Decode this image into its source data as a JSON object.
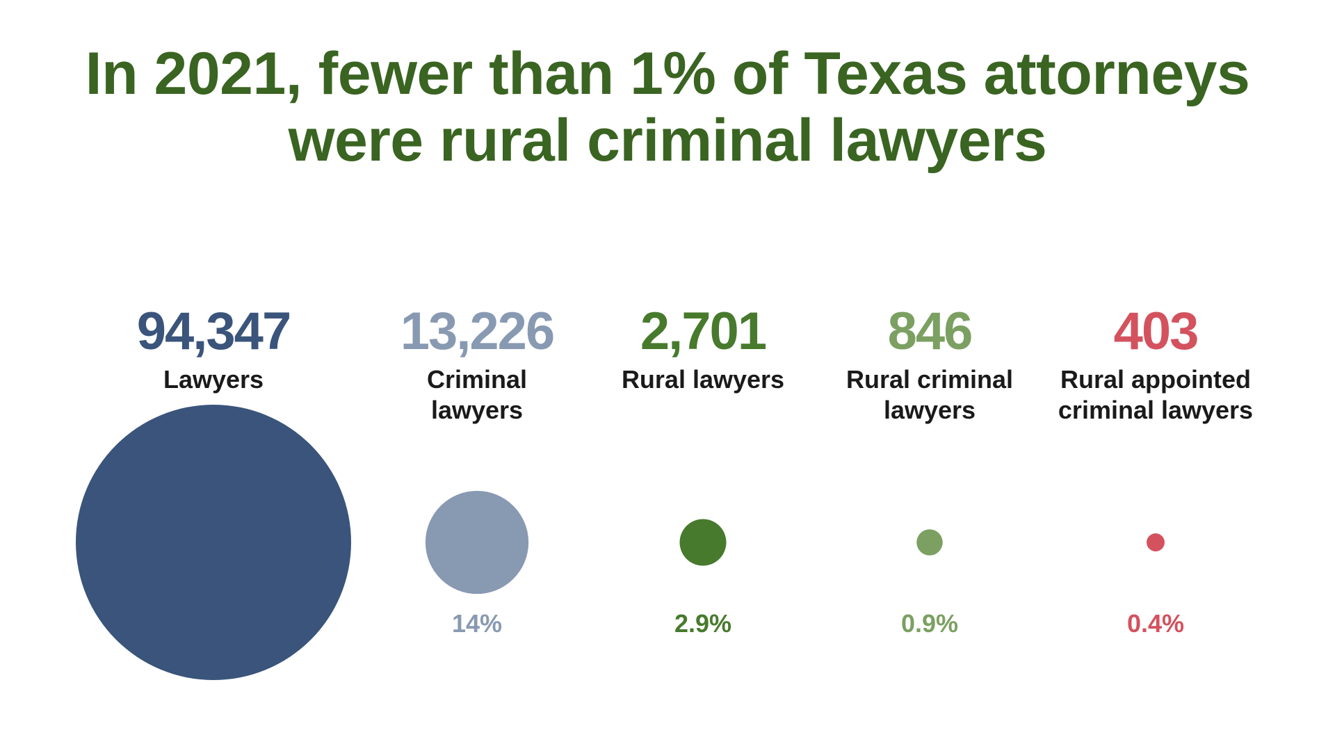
{
  "title_lines": [
    "In 2021, fewer than 1% of Texas attorneys",
    "were rural criminal lawyers"
  ],
  "chart_data": {
    "type": "bubble",
    "title": "In 2021, fewer than 1% of Texas attorneys were rural criminal lawyers",
    "items": [
      {
        "value": 94347,
        "count_label": "94,347",
        "label_lines": [
          "Lawyers"
        ],
        "percent": "",
        "color": "#3a547b"
      },
      {
        "value": 13226,
        "count_label": "13,226",
        "label_lines": [
          "Criminal",
          "lawyers"
        ],
        "percent": "14%",
        "color": "#8899b2"
      },
      {
        "value": 2701,
        "count_label": "2,701",
        "label_lines": [
          "Rural lawyers"
        ],
        "percent": "2.9%",
        "color": "#477a2d"
      },
      {
        "value": 846,
        "count_label": "846",
        "label_lines": [
          "Rural criminal",
          "lawyers"
        ],
        "percent": "0.9%",
        "color": "#7ba062"
      },
      {
        "value": 403,
        "count_label": "403",
        "label_lines": [
          "Rural appointed",
          "criminal lawyers"
        ],
        "percent": "0.4%",
        "color": "#d3525e"
      }
    ]
  }
}
